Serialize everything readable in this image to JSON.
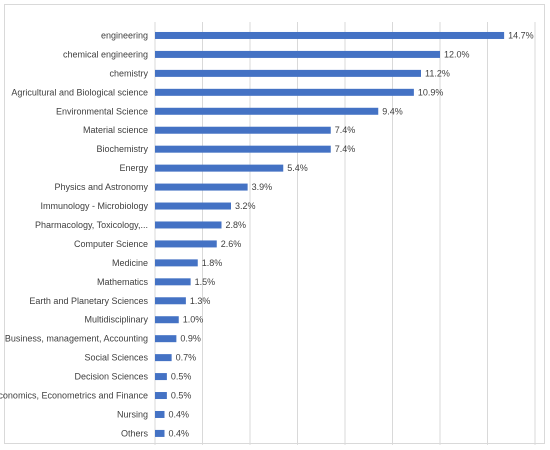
{
  "chart_data": {
    "type": "bar",
    "orientation": "horizontal",
    "categories": [
      "engineering",
      "chemical engineering",
      "chemistry",
      "Agricultural and Biological science",
      "Environmental Science",
      "Material science",
      "Biochemistry",
      "Energy",
      "Physics and Astronomy",
      "Immunology - Microbiology",
      "Pharmacology, Toxicology,...",
      "Computer Science",
      "Medicine",
      "Mathematics",
      "Earth and Planetary Sciences",
      "Multidisciplinary",
      "Business, management, Accounting",
      "Social Sciences",
      "Decision Sciences",
      "Economics, Econometrics and Finance",
      "Nursing",
      "Others"
    ],
    "values": [
      14.7,
      12.0,
      11.2,
      10.9,
      9.4,
      7.4,
      7.4,
      5.4,
      3.9,
      3.2,
      2.8,
      2.6,
      1.8,
      1.5,
      1.3,
      1.0,
      0.9,
      0.7,
      0.5,
      0.5,
      0.4,
      0.4
    ],
    "value_labels": [
      "14.7%",
      "12.0%",
      "11.2%",
      "10.9%",
      "9.4%",
      "7.4%",
      "7.4%",
      "5.4%",
      "3.9%",
      "3.2%",
      "2.8%",
      "2.6%",
      "1.8%",
      "1.5%",
      "1.3%",
      "1.0%",
      "0.9%",
      "0.7%",
      "0.5%",
      "0.5%",
      "0.4%",
      "0.4%"
    ],
    "xlim": [
      0,
      16
    ],
    "grid": true,
    "bar_color": "#4472c4",
    "gridline_color": "#d9d9d9"
  }
}
